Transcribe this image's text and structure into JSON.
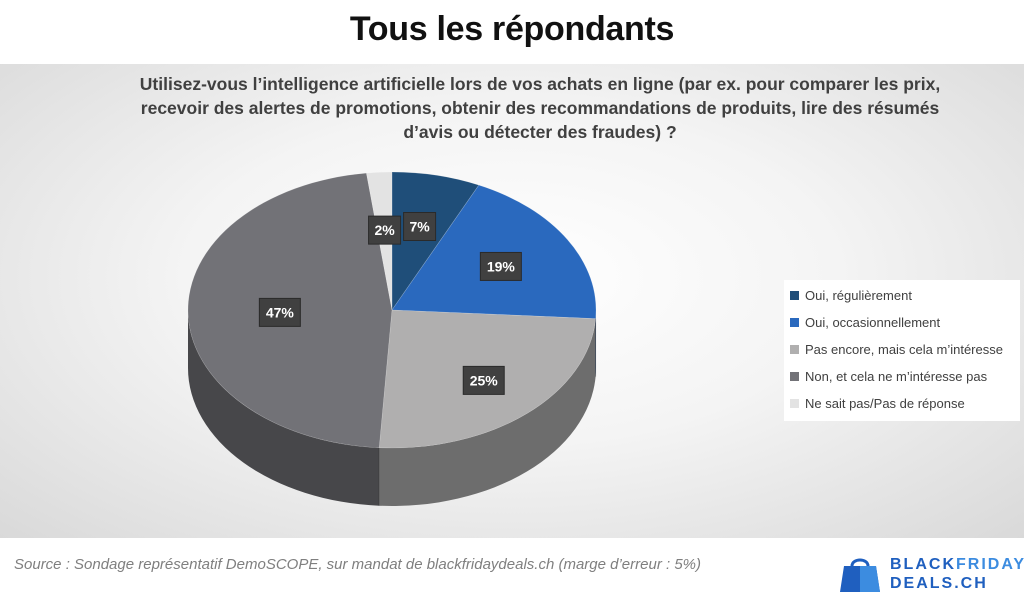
{
  "header": {
    "title": "Tous les répondants"
  },
  "chart_data": {
    "type": "pie",
    "title": "Utilisez-vous l’intelligence artificielle lors de vos achats en ligne (par ex. pour comparer les prix, recevoir des alertes de promotions, obtenir des recommandations de produits, lire des résumés d’avis ou détecter des fraudes) ?",
    "slices": [
      {
        "label": "Oui, régulièrement",
        "value": 7,
        "value_label": "7%",
        "color": "#1f4e79"
      },
      {
        "label": "Oui, occasionnellement",
        "value": 19,
        "value_label": "19%",
        "color": "#2a69be"
      },
      {
        "label": "Pas encore, mais cela m’intéresse",
        "value": 25,
        "value_label": "25%",
        "color": "#b0afaf"
      },
      {
        "label": "Non, et cela ne m’intéresse pas",
        "value": 47,
        "value_label": "47%",
        "color": "#727277"
      },
      {
        "label": "Ne sait pas/Pas de réponse",
        "value": 2,
        "value_label": "2%",
        "color": "#e3e3e3"
      }
    ],
    "style": "3d-pie",
    "legend_position": "right"
  },
  "footer": {
    "source": "Source : Sondage représentatif DemoSCOPE, sur mandat de blackfridaydeals.ch (marge d’erreur : 5%)",
    "brand_line1a": "BLACK",
    "brand_line1b": "FRIDAY",
    "brand_line2": "DEALS.CH",
    "brand_color": "#1f5fbf"
  }
}
